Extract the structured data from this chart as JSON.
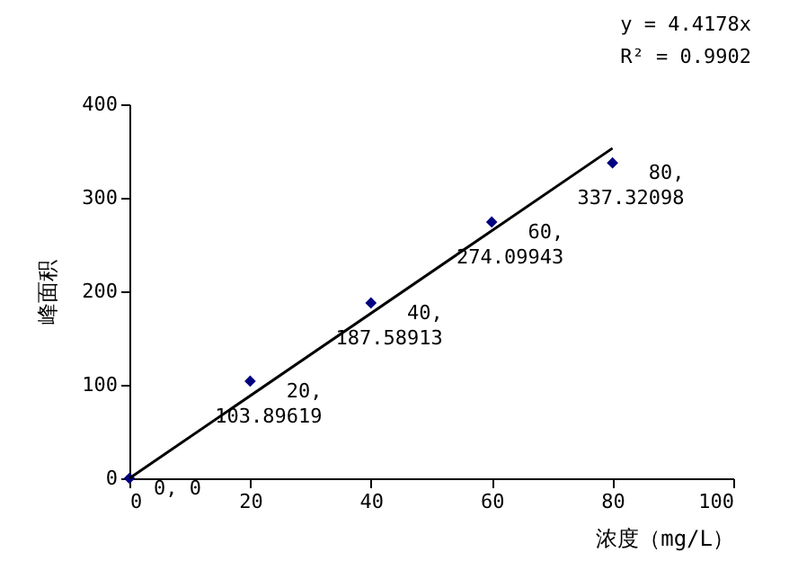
{
  "chart_data": {
    "type": "scatter",
    "xlabel": "浓度（mg/L）",
    "ylabel": "峰面积",
    "x": [
      0,
      20,
      40,
      60,
      80
    ],
    "series": [
      {
        "color": "#000080",
        "marker": "diamond",
        "values": [
          0,
          103.89619,
          187.58913,
          274.09943,
          337.32098
        ],
        "value_labels": [
          "0, 0",
          "20,\n103.89619",
          "40,\n187.58913",
          "60,\n274.09943",
          "80,\n337.32098"
        ]
      },
      {
        "type": "line",
        "color": "#000000",
        "x": [
          0,
          80
        ],
        "values": [
          0,
          353
        ]
      }
    ],
    "annotations": [
      "y = 4.4178x",
      "R² = 0.9902"
    ],
    "xlim": [
      0,
      100
    ],
    "xticks": [
      0,
      20,
      40,
      60,
      80,
      100
    ],
    "ylim": [
      0,
      400
    ],
    "yticks": [
      0,
      100,
      200,
      300,
      400
    ]
  }
}
